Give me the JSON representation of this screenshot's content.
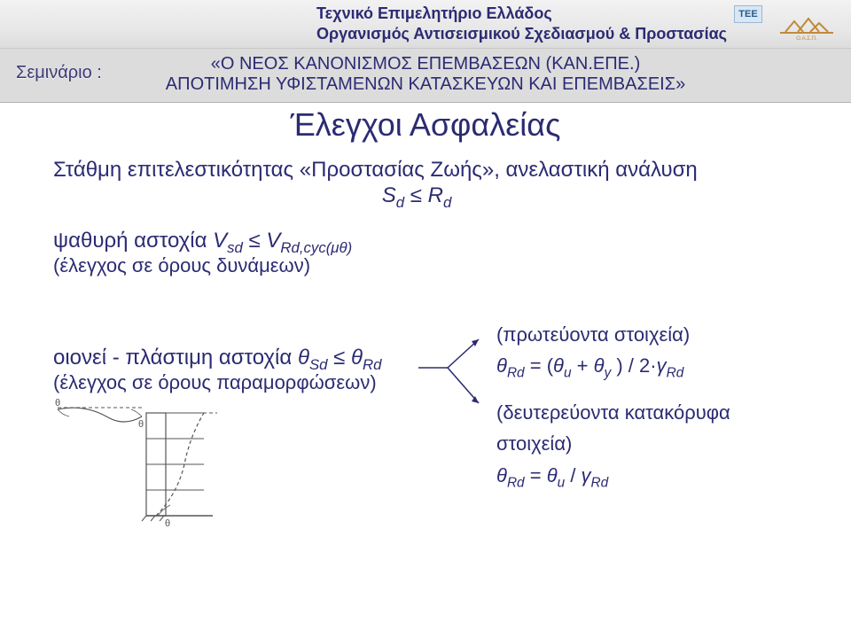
{
  "header": {
    "org_line1": "Τεχνικό Επιμελητήριο Ελλάδος",
    "org_line2": "Οργανισμός Αντισεισμικού Σχεδιασμού & Προστασίας",
    "tee_badge": "TEE"
  },
  "subbar": {
    "seminar_label": "Σεμινάριο :",
    "title_line1": "«Ο ΝΕΟΣ ΚΑΝΟΝΙΣΜΟΣ ΕΠΕΜΒΑΣΕΩΝ (ΚΑΝ.ΕΠΕ.)",
    "title_line2": "ΑΠΟΤΙΜΗΣΗ ΥΦΙΣΤΑΜΕΝΩΝ ΚΑΤΑΣΚΕΥΩΝ ΚΑΙ ΕΠΕΜΒΑΣΕΙΣ»"
  },
  "main": {
    "title": "Έλεγχοι Ασφαλείας",
    "level_line": "Στάθμη επιτελεστικότητας «Προστασίας Ζωής», ανελαστική ανάλυση",
    "ineq_main_html": "<span class='ital'>S<sub>d</sub></span> ≤ <span class='ital'>R<sub>d</sub></span>",
    "brittle_label": "ψαθυρή αστοχία  ",
    "brittle_ineq_html": "<span class='ital'>V<sub>sd</sub></span> ≤ <span class='ital'>V<sub>Rd,cyc(μθ)</sub></span>",
    "brittle_check": "(έλεγχος σε όρους δυνάμεων)",
    "ductile_label": "οιονεί - πλάστιμη αστοχία  ",
    "ductile_ineq_html": "<span class='ital'>θ<sub>Sd</sub></span> ≤ <span class='ital'>θ<sub>Rd</sub></span>",
    "ductile_check": "(έλεγχος σε όρους παραμορφώσεων)"
  },
  "rhs": {
    "primary_label": "(πρωτεύοντα στοιχεία)",
    "primary_formula_html": "<span class='ital'>θ<sub>Rd</sub></span> = (<span class='ital'>θ<sub>u</sub></span> + <span class='ital'>θ<sub>y</sub></span> ) /  2·<span class='ital'>γ<sub>Rd</sub></span>",
    "secondary_label1": "(δευτερεύοντα κατακόρυφα",
    "secondary_label2": "στοιχεία)",
    "secondary_formula_html": "<span class='ital'>θ<sub>Rd</sub></span> = <span class='ital'>θ<sub>u</sub></span>  / <span class='ital'>γ<sub>Rd</sub></span>"
  },
  "colors": {
    "text": "#2b2b73",
    "header_bg_top": "#f2f2f2",
    "header_bg_bot": "#dcdcdc",
    "diagram_stroke": "#555555"
  },
  "diagram": {
    "type": "schematic",
    "theta_labels": [
      "θ",
      "θ",
      "θ"
    ],
    "stroke": "#555555",
    "dash": "4 3"
  }
}
